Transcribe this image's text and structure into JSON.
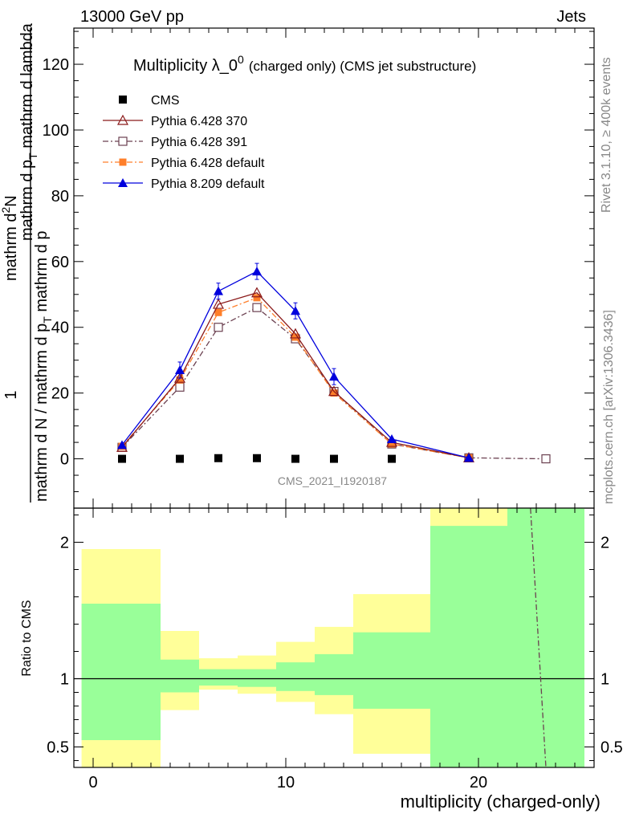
{
  "header": {
    "left": "13000 GeV pp",
    "right": "Jets"
  },
  "side_labels": {
    "rivet": "Rivet 3.1.10, ≥ 400k events",
    "mcplots": "mcplots.cern.ch [arXiv:1306.3436]"
  },
  "watermark": "CMS_2021_I1920187",
  "colors": {
    "cms": "#000000",
    "p370": "#8b1a1a",
    "p391": "#6b4050",
    "p6def": "#ff7f2a",
    "p8": "#0000dd",
    "band_green": "#99ff99",
    "band_yellow": "#ffff99"
  },
  "chart_data": [
    {
      "type": "line",
      "title_main": "Multiplicity λ_0",
      "title_sup": "0",
      "title_rest": "(charged only) (CMS jet substructure)",
      "ylabel_numerator": "1",
      "ylabel_denominator": "mathrm d N / mathrm d p",
      "ylabel_denominator_sub": "T",
      "ylabel_denominator_rest": " mathrm d p",
      "ylabel_part2": "mathrm d",
      "ylabel_part2_sup": "2",
      "ylabel_part2_rest": "N",
      "ylabel_top": "mathrm d p",
      "ylabel_top_sub": "T",
      "ylabel_top_rest": " mathrm d lambda",
      "xlim": [
        -1,
        26
      ],
      "ylim": [
        -15,
        131
      ],
      "yticks": [
        0,
        20,
        40,
        60,
        80,
        100,
        120
      ],
      "grid": false,
      "legend_position": "top-left",
      "series": [
        {
          "key": "cms",
          "name": "CMS",
          "marker": "filled-square",
          "x": [
            1.5,
            4.5,
            6.5,
            8.5,
            10.5,
            12.5,
            15.5
          ],
          "y": [
            0,
            0,
            0.2,
            0.2,
            0,
            0,
            0
          ]
        },
        {
          "key": "p370",
          "name": "Pythia 6.428 370",
          "marker": "open-triangle",
          "dash": "solid",
          "x": [
            1.5,
            4.5,
            6.5,
            8.5,
            10.5,
            12.5,
            15.5,
            19.5
          ],
          "y": [
            3.5,
            24.5,
            47.0,
            50.5,
            38.0,
            20.5,
            5.0,
            0.3
          ]
        },
        {
          "key": "p391",
          "name": "Pythia 6.428 391",
          "marker": "open-square",
          "dash": "dashdot",
          "x": [
            1.5,
            4.5,
            6.5,
            8.5,
            10.5,
            12.5,
            15.5,
            19.5,
            23.5
          ],
          "y": [
            3.5,
            21.8,
            40.0,
            46.0,
            36.5,
            20.5,
            4.5,
            0.3,
            0
          ]
        },
        {
          "key": "p6def",
          "name": "Pythia 6.428 default",
          "marker": "filled-square",
          "dash": "dashdot",
          "x": [
            1.5,
            4.5,
            6.5,
            8.5,
            10.5,
            12.5,
            15.5,
            19.5
          ],
          "y": [
            3.8,
            24.0,
            44.5,
            49.0,
            37.0,
            20.0,
            4.5,
            0.3
          ]
        },
        {
          "key": "p8",
          "name": "Pythia 8.209 default",
          "marker": "filled-triangle",
          "dash": "solid",
          "x": [
            1.5,
            4.5,
            6.5,
            8.5,
            10.5,
            12.5,
            15.5,
            19.5
          ],
          "y": [
            4.2,
            27.0,
            51.0,
            57.0,
            45.0,
            25.0,
            6.0,
            0.3
          ]
        }
      ]
    },
    {
      "type": "area",
      "ylabel": "Ratio to CMS",
      "xlabel": "multiplicity (charged-only)",
      "xlim": [
        -1,
        26
      ],
      "ylim": [
        0.35,
        2.25
      ],
      "yticks": [
        0.5,
        1,
        2
      ],
      "xticks": [
        0,
        10,
        20
      ],
      "reference_line": 1,
      "bands": [
        {
          "x0": -0.6,
          "x1": 3.5,
          "green": [
            0.55,
            1.55
          ],
          "yellow": [
            0.35,
            1.95
          ]
        },
        {
          "x0": 3.5,
          "x1": 5.5,
          "green": [
            0.9,
            1.14
          ],
          "yellow": [
            0.77,
            1.35
          ]
        },
        {
          "x0": 5.5,
          "x1": 7.5,
          "green": [
            0.95,
            1.07
          ],
          "yellow": [
            0.92,
            1.15
          ]
        },
        {
          "x0": 7.5,
          "x1": 9.5,
          "green": [
            0.94,
            1.07
          ],
          "yellow": [
            0.89,
            1.17
          ]
        },
        {
          "x0": 9.5,
          "x1": 11.5,
          "green": [
            0.91,
            1.12
          ],
          "yellow": [
            0.83,
            1.27
          ]
        },
        {
          "x0": 11.5,
          "x1": 13.5,
          "green": [
            0.88,
            1.18
          ],
          "yellow": [
            0.74,
            1.38
          ]
        },
        {
          "x0": 13.5,
          "x1": 17.5,
          "green": [
            0.78,
            1.34
          ],
          "yellow": [
            0.45,
            1.62
          ]
        },
        {
          "x0": 17.5,
          "x1": 21.5,
          "green": [
            0.35,
            2.12
          ],
          "yellow": [
            0.35,
            2.25
          ]
        },
        {
          "x0": 21.5,
          "x1": 25.5,
          "green": [
            0.35,
            2.25
          ],
          "yellow": [
            0.35,
            2.25
          ]
        }
      ],
      "ratio_line": {
        "key": "p391",
        "x": [
          22.7,
          23.5
        ],
        "y": [
          2.25,
          0.35
        ]
      }
    }
  ]
}
